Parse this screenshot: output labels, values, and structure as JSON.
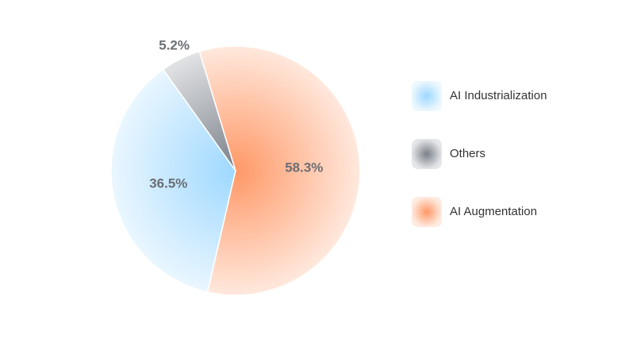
{
  "chart_data": {
    "type": "pie",
    "categories": [
      "AI Industrialization",
      "Others",
      "AI Augmentation"
    ],
    "values": [
      36.5,
      5.2,
      58.3
    ],
    "value_labels": [
      "36.5%",
      "5.2%",
      "58.3%"
    ],
    "colors": [
      "#9ed8ff",
      "#7a8089",
      "#ff9866"
    ]
  }
}
